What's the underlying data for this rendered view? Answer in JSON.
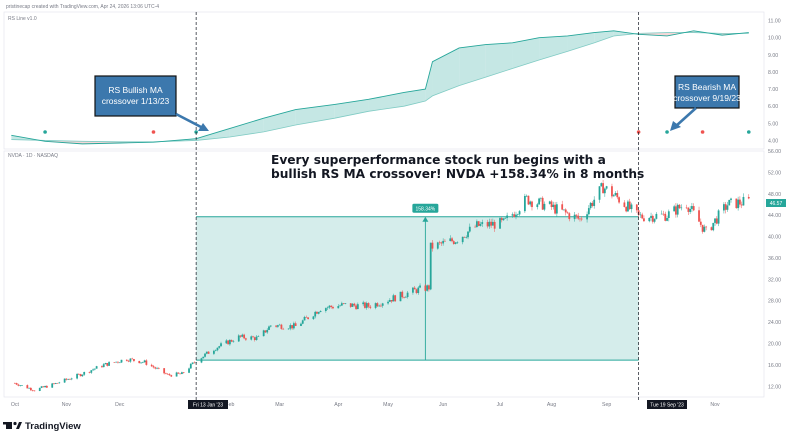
{
  "header": {
    "author_line": "pristinecap created with TradingView.com, Apr 24, 2026 13:06 UTC-4"
  },
  "indicator": {
    "name": "RS Line v1.0"
  },
  "symbol": {
    "line": "NVDA · 1D · NASDAQ"
  },
  "headline": {
    "line1": "Every superperformance stock run begins with a",
    "line2": "bullish RS MA crossover! NVDA +158.34% in 8 months"
  },
  "callouts": {
    "bullish": {
      "line1": "RS Bullish MA",
      "line2": "crossover 1/13/23"
    },
    "bearish": {
      "line1": "RS Bearish MA",
      "line2": "crossover 9/19/23"
    }
  },
  "measure": {
    "label": "158.34%"
  },
  "price_tag": {
    "label": "46.57"
  },
  "axis_markers": {
    "left": "Fri 13 Jan '23",
    "right": "Tue 19 Sep '23"
  },
  "brand": {
    "name": "TradingView"
  },
  "colors": {
    "up": "#26a69a",
    "down": "#ef5350",
    "area_fill": "#b2dfdb",
    "callout_box": "#3c78ad",
    "callout_border": "#111111",
    "arrow": "#3c78ad",
    "rs_line": "#26a69a",
    "tag_bg": "#131722"
  },
  "chart_data": [
    {
      "type": "area",
      "title": "RS Line v1.0",
      "ylim": [
        3.5,
        11.5
      ],
      "y_ticks": [
        "11.00",
        "10.00",
        "9.00",
        "8.00",
        "7.00",
        "6.00",
        "5.00",
        "4.00"
      ],
      "rs_points": [
        {
          "x": "2022-10-01",
          "y": 4.3
        },
        {
          "x": "2022-10-20",
          "y": 3.95
        },
        {
          "x": "2022-11-10",
          "y": 3.8
        },
        {
          "x": "2022-12-01",
          "y": 3.85
        },
        {
          "x": "2022-12-20",
          "y": 3.9
        },
        {
          "x": "2023-01-13",
          "y": 4.1
        },
        {
          "x": "2023-02-01",
          "y": 4.7
        },
        {
          "x": "2023-02-20",
          "y": 5.3
        },
        {
          "x": "2023-03-10",
          "y": 5.8
        },
        {
          "x": "2023-04-01",
          "y": 6.1
        },
        {
          "x": "2023-04-20",
          "y": 6.4
        },
        {
          "x": "2023-05-10",
          "y": 6.8
        },
        {
          "x": "2023-05-22",
          "y": 7.0
        },
        {
          "x": "2023-05-26",
          "y": 8.6
        },
        {
          "x": "2023-06-10",
          "y": 9.4
        },
        {
          "x": "2023-06-25",
          "y": 9.6
        },
        {
          "x": "2023-07-10",
          "y": 9.7
        },
        {
          "x": "2023-07-25",
          "y": 10.0
        },
        {
          "x": "2023-08-10",
          "y": 10.1
        },
        {
          "x": "2023-08-25",
          "y": 10.3
        },
        {
          "x": "2023-09-05",
          "y": 10.4
        },
        {
          "x": "2023-09-19",
          "y": 10.2
        },
        {
          "x": "2023-10-05",
          "y": 10.1
        },
        {
          "x": "2023-10-20",
          "y": 10.4
        },
        {
          "x": "2023-11-05",
          "y": 10.15
        },
        {
          "x": "2023-11-20",
          "y": 10.3
        }
      ],
      "rs_ma_points": [
        {
          "x": "2022-10-01",
          "y": 4.05
        },
        {
          "x": "2022-10-20",
          "y": 4.0
        },
        {
          "x": "2022-11-10",
          "y": 3.95
        },
        {
          "x": "2022-12-01",
          "y": 3.92
        },
        {
          "x": "2022-12-20",
          "y": 3.92
        },
        {
          "x": "2023-01-13",
          "y": 4.0
        },
        {
          "x": "2023-02-01",
          "y": 4.2
        },
        {
          "x": "2023-02-20",
          "y": 4.5
        },
        {
          "x": "2023-03-10",
          "y": 4.9
        },
        {
          "x": "2023-04-01",
          "y": 5.3
        },
        {
          "x": "2023-04-20",
          "y": 5.7
        },
        {
          "x": "2023-05-10",
          "y": 6.0
        },
        {
          "x": "2023-05-22",
          "y": 6.3
        },
        {
          "x": "2023-05-26",
          "y": 6.6
        },
        {
          "x": "2023-06-10",
          "y": 7.2
        },
        {
          "x": "2023-06-25",
          "y": 7.7
        },
        {
          "x": "2023-07-10",
          "y": 8.2
        },
        {
          "x": "2023-07-25",
          "y": 8.7
        },
        {
          "x": "2023-08-10",
          "y": 9.2
        },
        {
          "x": "2023-08-25",
          "y": 9.7
        },
        {
          "x": "2023-09-05",
          "y": 10.1
        },
        {
          "x": "2023-09-19",
          "y": 10.25
        },
        {
          "x": "2023-10-05",
          "y": 10.3
        },
        {
          "x": "2023-10-20",
          "y": 10.3
        },
        {
          "x": "2023-11-05",
          "y": 10.25
        },
        {
          "x": "2023-11-20",
          "y": 10.25
        }
      ],
      "signal_dots": [
        {
          "x": "2022-10-20",
          "color": "#26a69a"
        },
        {
          "x": "2022-12-20",
          "color": "#ef5350"
        },
        {
          "x": "2023-01-13",
          "color": "#26a69a"
        },
        {
          "x": "2023-09-19",
          "color": "#ef5350"
        },
        {
          "x": "2023-10-05",
          "color": "#26a69a"
        },
        {
          "x": "2023-10-25",
          "color": "#ef5350"
        },
        {
          "x": "2023-11-20",
          "color": "#26a69a"
        }
      ]
    },
    {
      "type": "candlestick",
      "title": "NVDA · 1D · NASDAQ",
      "ylim": [
        10,
        56
      ],
      "y_ticks": [
        "56.00",
        "52.00",
        "48.00",
        "44.00",
        "40.00",
        "36.00",
        "32.00",
        "28.00",
        "24.00",
        "20.00",
        "16.00",
        "12.00",
        "8.00"
      ],
      "x_ticks": [
        "Oct",
        "Nov",
        "Dec",
        "Feb",
        "Mar",
        "Apr",
        "May",
        "Jun",
        "Jul",
        "Aug",
        "Sep",
        "Nov"
      ],
      "price_path": [
        {
          "x": "2022-10-03",
          "y": 12.6
        },
        {
          "x": "2022-10-14",
          "y": 11.3
        },
        {
          "x": "2022-10-25",
          "y": 12.4
        },
        {
          "x": "2022-11-08",
          "y": 14.1
        },
        {
          "x": "2022-11-22",
          "y": 16.0
        },
        {
          "x": "2022-12-05",
          "y": 17.1
        },
        {
          "x": "2022-12-15",
          "y": 16.5
        },
        {
          "x": "2022-12-28",
          "y": 14.1
        },
        {
          "x": "2023-01-05",
          "y": 14.3
        },
        {
          "x": "2023-01-13",
          "y": 16.8
        },
        {
          "x": "2023-01-24",
          "y": 19.2
        },
        {
          "x": "2023-02-06",
          "y": 21.2
        },
        {
          "x": "2023-02-17",
          "y": 21.0
        },
        {
          "x": "2023-02-24",
          "y": 23.4
        },
        {
          "x": "2023-03-10",
          "y": 23.2
        },
        {
          "x": "2023-03-24",
          "y": 26.6
        },
        {
          "x": "2023-04-06",
          "y": 27.2
        },
        {
          "x": "2023-04-20",
          "y": 27.0
        },
        {
          "x": "2023-05-05",
          "y": 28.6
        },
        {
          "x": "2023-05-17",
          "y": 30.0
        },
        {
          "x": "2023-05-24",
          "y": 30.5
        },
        {
          "x": "2023-05-25",
          "y": 38.0
        },
        {
          "x": "2023-06-08",
          "y": 39.4
        },
        {
          "x": "2023-06-20",
          "y": 42.0
        },
        {
          "x": "2023-07-05",
          "y": 42.5
        },
        {
          "x": "2023-07-18",
          "y": 47.0
        },
        {
          "x": "2023-08-01",
          "y": 45.5
        },
        {
          "x": "2023-08-17",
          "y": 43.2
        },
        {
          "x": "2023-08-30",
          "y": 49.3
        },
        {
          "x": "2023-09-08",
          "y": 47.0
        },
        {
          "x": "2023-09-19",
          "y": 43.7
        },
        {
          "x": "2023-10-05",
          "y": 44.0
        },
        {
          "x": "2023-10-16",
          "y": 46.2
        },
        {
          "x": "2023-10-27",
          "y": 40.8
        },
        {
          "x": "2023-11-08",
          "y": 46.0
        },
        {
          "x": "2023-11-20",
          "y": 46.57
        }
      ],
      "range_box": {
        "x_start": "2023-01-13",
        "x_end": "2023-09-19",
        "y_low": 16.9,
        "y_high": 43.7,
        "change_pct": 158.34
      },
      "events": [
        {
          "date": "2023-01-13",
          "label": "RS Bullish MA crossover 1/13/23"
        },
        {
          "date": "2023-09-19",
          "label": "RS Bearish MA crossover 9/19/23"
        }
      ],
      "last_price": 46.57
    }
  ]
}
